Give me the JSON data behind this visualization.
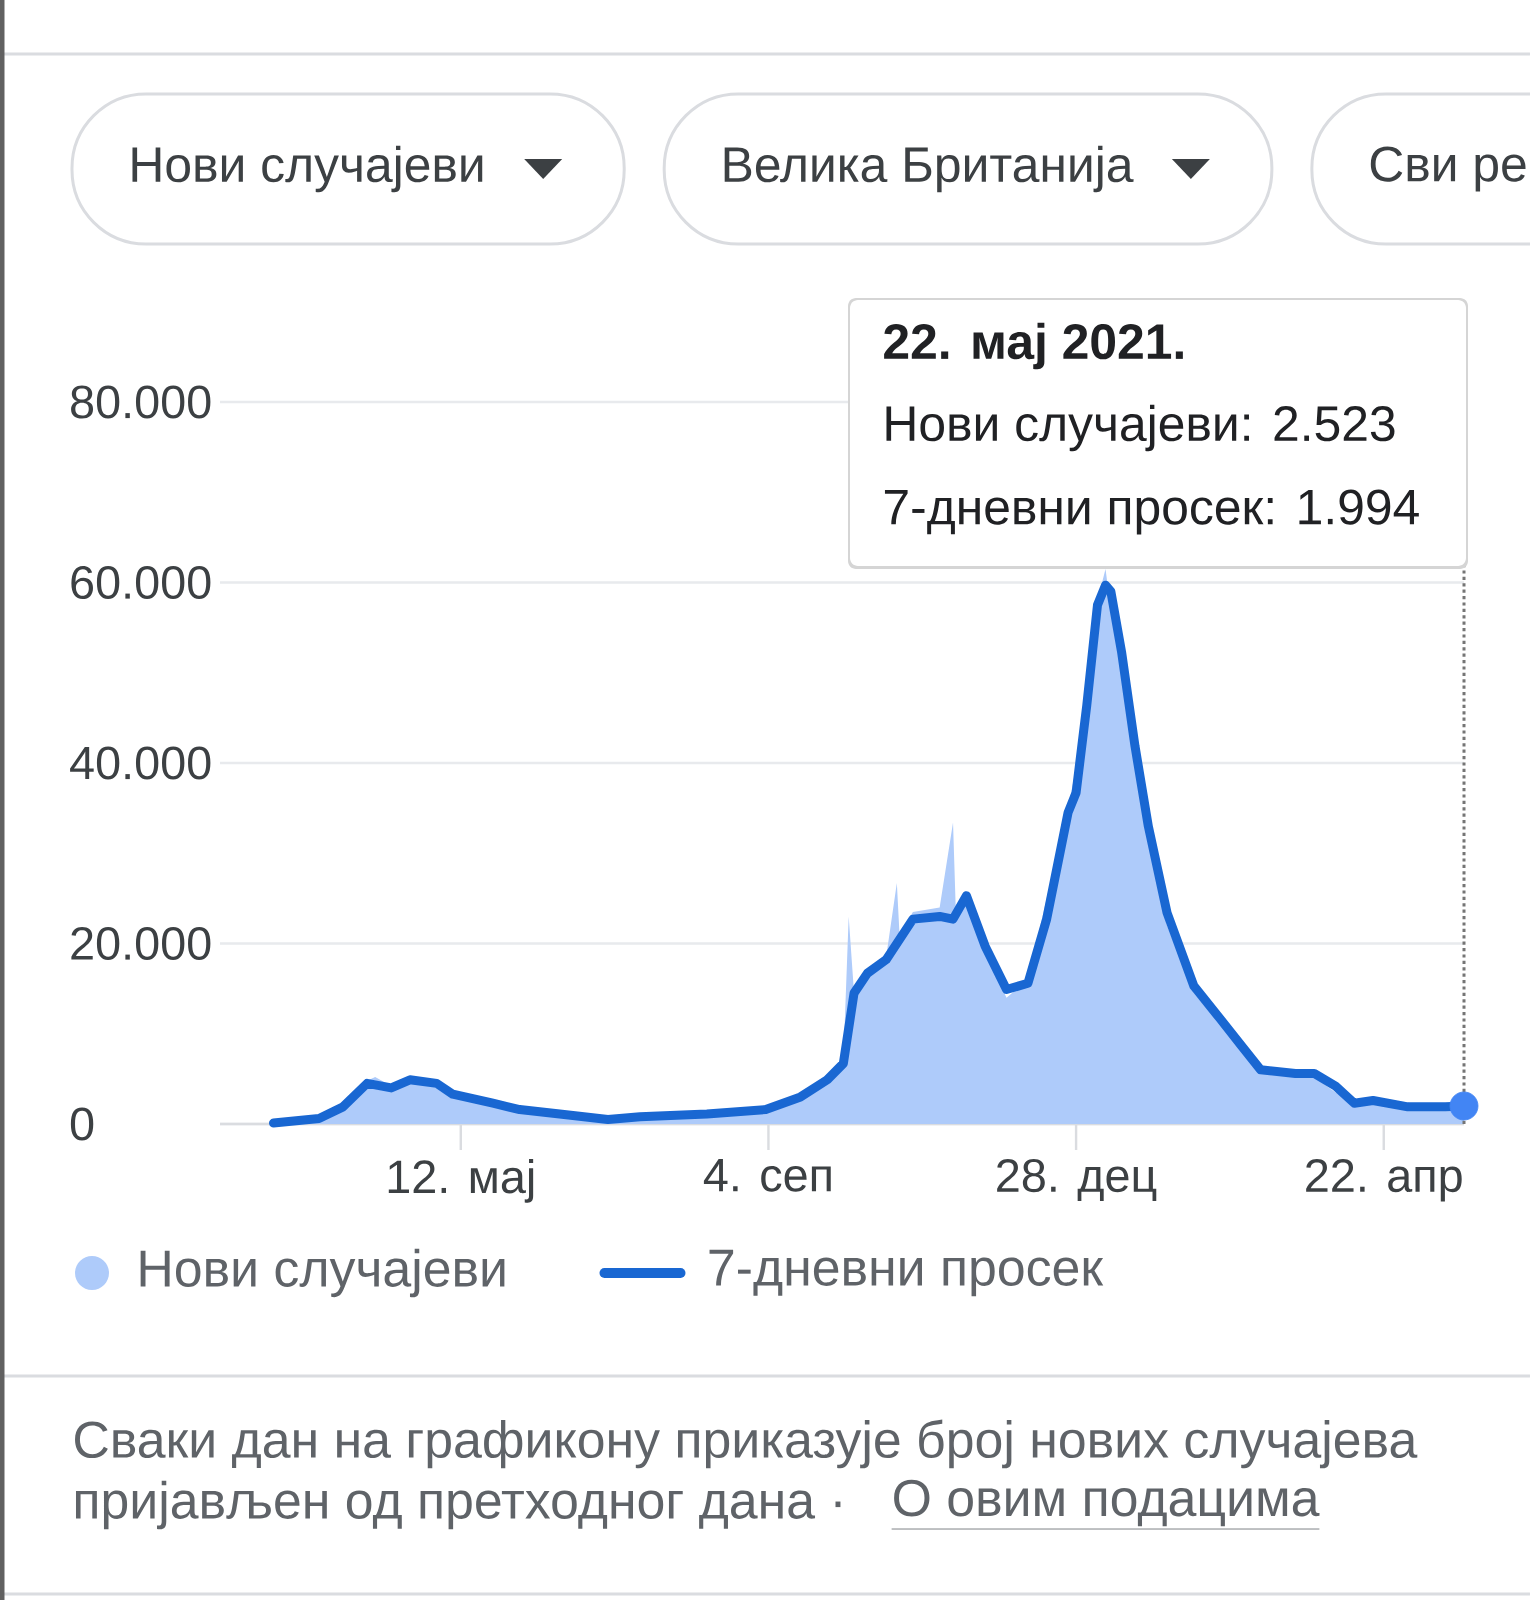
{
  "chart_data": {
    "type": "line",
    "xlim": [
      "2020-02-12",
      "2021-05-22"
    ],
    "xticks": [
      {
        "value": "2020-05-12",
        "label": "12. мај"
      },
      {
        "value": "2020-09-04",
        "label": "4. сеп"
      },
      {
        "value": "2020-12-28",
        "label": "28. дец"
      },
      {
        "value": "2021-04-22",
        "label": "22. апр"
      }
    ],
    "ylim": [
      0,
      80000
    ],
    "yticks": [
      0,
      {
        "value": 20000,
        "label": "20.000"
      },
      {
        "value": 40000,
        "label": "40.000"
      },
      {
        "value": 60000,
        "label": "60.000"
      },
      {
        "value": 80000,
        "label": "80.000"
      }
    ],
    "grid": "y",
    "legend": "bottom",
    "series": [
      {
        "name": "Нови случајеви",
        "type": "area",
        "color": "#aecbfa",
        "x": [
          "2020-03-03",
          "2020-03-20",
          "2020-03-29",
          "2020-04-07",
          "2020-04-10",
          "2020-04-16",
          "2020-04-23",
          "2020-05-03",
          "2020-05-09",
          "2020-05-24",
          "2020-06-03",
          "2020-06-18",
          "2020-07-06",
          "2020-07-18",
          "2020-08-12",
          "2020-09-03",
          "2020-09-16",
          "2020-09-26",
          "2020-10-02",
          "2020-10-04",
          "2020-10-06",
          "2020-10-11",
          "2020-10-18",
          "2020-10-22",
          "2020-10-23",
          "2020-10-28",
          "2020-11-07",
          "2020-11-12",
          "2020-11-13",
          "2020-11-17",
          "2020-11-24",
          "2020-12-02",
          "2020-12-10",
          "2020-12-17",
          "2020-12-25",
          "2020-12-29",
          "2021-01-01",
          "2021-01-05",
          "2021-01-08",
          "2021-01-10",
          "2021-01-14",
          "2021-01-19",
          "2021-01-24",
          "2021-01-31",
          "2021-02-10",
          "2021-02-20",
          "2021-02-28",
          "2021-03-07",
          "2021-03-20",
          "2021-03-27",
          "2021-04-04",
          "2021-04-11",
          "2021-04-18",
          "2021-05-01",
          "2021-05-15",
          "2021-05-22"
        ],
        "values": [
          100,
          700,
          2500,
          4800,
          5200,
          4200,
          5000,
          4400,
          3200,
          2200,
          1500,
          1000,
          500,
          800,
          1100,
          1600,
          3300,
          5500,
          7000,
          23000,
          14500,
          16700,
          18500,
          26700,
          21000,
          23500,
          24000,
          33400,
          24000,
          25000,
          19000,
          14000,
          16000,
          25000,
          35000,
          41000,
          50000,
          58000,
          61500,
          57000,
          50000,
          40000,
          31000,
          22000,
          14500,
          11000,
          8000,
          5800,
          5500,
          5200,
          3500,
          2600,
          2500,
          2000,
          2200,
          2523
        ]
      },
      {
        "name": "7-дневни просек",
        "color": "#1967d2",
        "x": [
          "2020-03-03",
          "2020-03-20",
          "2020-03-29",
          "2020-04-07",
          "2020-04-16",
          "2020-04-23",
          "2020-05-03",
          "2020-05-09",
          "2020-05-24",
          "2020-06-03",
          "2020-06-18",
          "2020-07-06",
          "2020-07-18",
          "2020-08-12",
          "2020-09-03",
          "2020-09-16",
          "2020-09-26",
          "2020-10-02",
          "2020-10-06",
          "2020-10-11",
          "2020-10-18",
          "2020-10-28",
          "2020-11-07",
          "2020-11-12",
          "2020-11-17",
          "2020-11-24",
          "2020-12-02",
          "2020-12-10",
          "2020-12-17",
          "2020-12-25",
          "2020-12-28",
          "2021-01-01",
          "2021-01-05",
          "2021-01-08",
          "2021-01-10",
          "2021-01-14",
          "2021-01-19",
          "2021-01-24",
          "2021-01-31",
          "2021-02-10",
          "2021-02-20",
          "2021-02-28",
          "2021-03-07",
          "2021-03-20",
          "2021-03-27",
          "2021-04-04",
          "2021-04-11",
          "2021-04-18",
          "2021-05-01",
          "2021-05-15",
          "2021-05-22"
        ],
        "values": [
          100,
          600,
          1900,
          4500,
          4000,
          4900,
          4500,
          3300,
          2300,
          1600,
          1100,
          500,
          800,
          1100,
          1600,
          3000,
          4900,
          6700,
          14500,
          16700,
          18200,
          22700,
          23000,
          22700,
          25300,
          19700,
          14900,
          15600,
          22700,
          34500,
          36700,
          46400,
          57500,
          59700,
          59000,
          52300,
          41900,
          33000,
          23400,
          15300,
          11600,
          8600,
          6000,
          5600,
          5600,
          4200,
          2300,
          2600,
          1900,
          1900,
          1994
        ]
      },
      {
        "type": "scatter",
        "color": "#4285f4",
        "x": [
          "2021-05-22"
        ],
        "values": [
          1994
        ]
      }
    ],
    "ref_lines": [
      {
        "axis": "x",
        "value": "2021-05-22",
        "color": "#757575",
        "line_style": "dotted"
      }
    ],
    "annotations": [
      "Нови случајеви",
      "Велика Британија",
      "Сви ре",
      "22. мај 2021.",
      "Нови случајеви: 2.523",
      "7-дневни просек: 1.994",
      "Сваки дан на графикону приказује број нових случајева",
      "пријављен од претходног дана ·",
      "О овим подацима"
    ]
  }
}
